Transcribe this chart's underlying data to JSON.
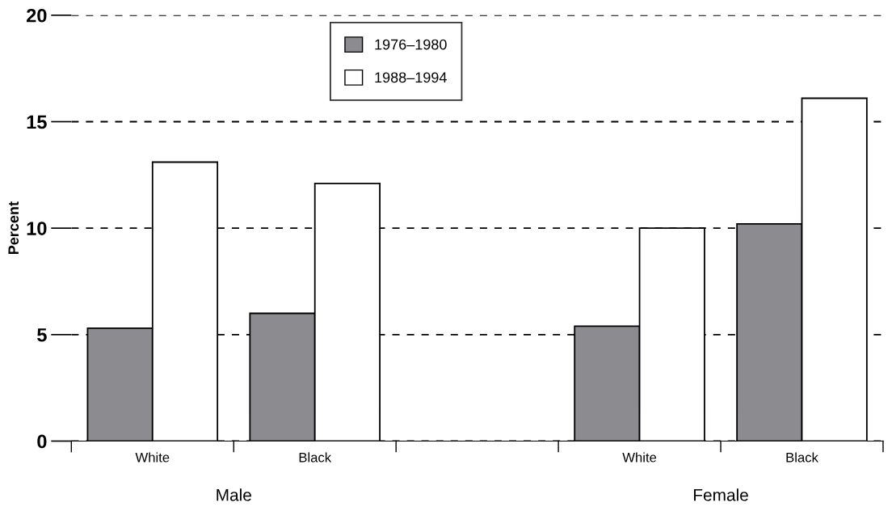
{
  "chart_data": {
    "type": "bar",
    "ylabel": "Percent",
    "categories": [
      "White",
      "Black",
      null,
      "White",
      "Black"
    ],
    "series": [
      {
        "name": "1976–1980",
        "color": "#8c8c90",
        "values": [
          5.3,
          6.0,
          null,
          5.4,
          10.2
        ]
      },
      {
        "name": "1988–1994",
        "color": "#ffffff",
        "values": [
          13.1,
          12.1,
          null,
          10.0,
          16.1
        ]
      }
    ],
    "ylim": [
      0,
      20
    ],
    "yticks": [
      0,
      5,
      10,
      15,
      20
    ],
    "grid": "y",
    "legend": "top",
    "annotations": [
      "Male",
      "Female"
    ]
  }
}
